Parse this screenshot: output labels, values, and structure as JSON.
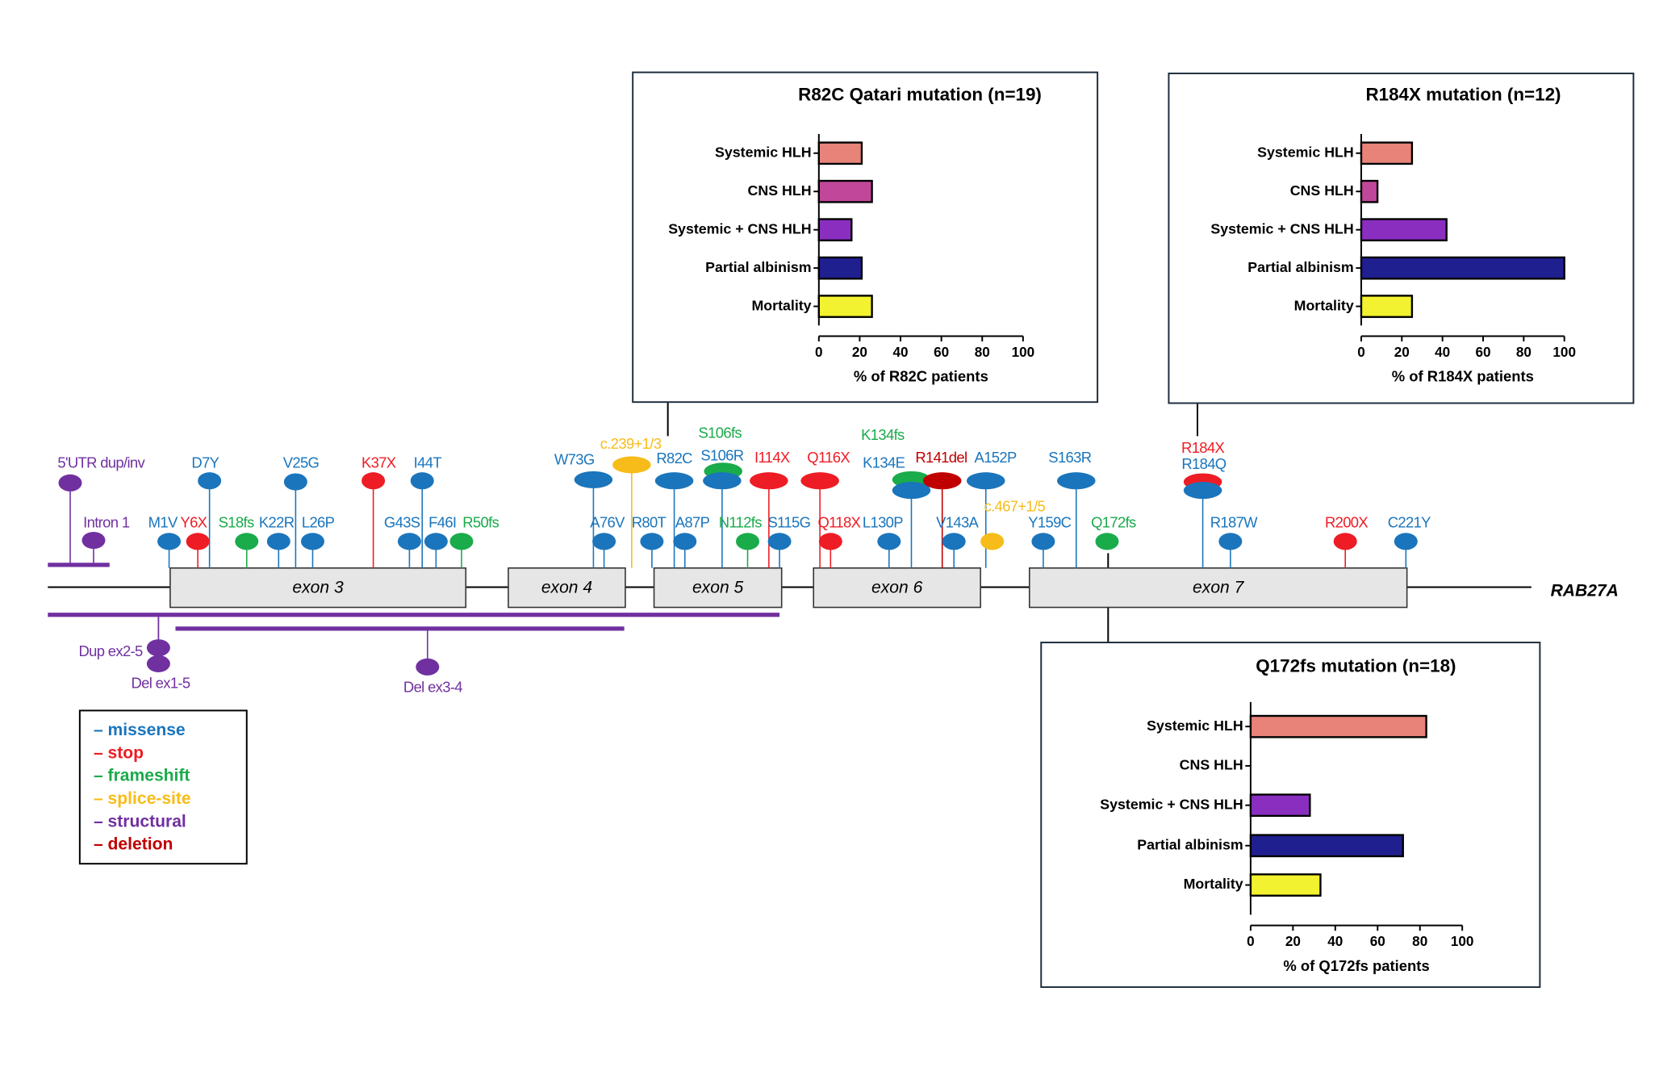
{
  "chart_data": [
    {
      "type": "barh",
      "title": "R82C Qatari mutation (n=19)",
      "categories": [
        "Systemic HLH",
        "CNS HLH",
        "Systemic + CNS HLH",
        "Partial albinism",
        "Mortality"
      ],
      "values": [
        21,
        26,
        16,
        21,
        26
      ],
      "colors": [
        "#e8837a",
        "#c0479a",
        "#8a2ec0",
        "#1f1f8f",
        "#f2f230"
      ],
      "xlim": [
        0,
        100
      ],
      "xticks": [
        0,
        20,
        40,
        60,
        80,
        100
      ],
      "xlabel": "% of R82C patients"
    },
    {
      "type": "barh",
      "title": "R184X mutation (n=12)",
      "categories": [
        "Systemic HLH",
        "CNS HLH",
        "Systemic + CNS HLH",
        "Partial albinism",
        "Mortality"
      ],
      "values": [
        25,
        8,
        42,
        100,
        25
      ],
      "colors": [
        "#e8837a",
        "#c0479a",
        "#8a2ec0",
        "#1f1f8f",
        "#f2f230"
      ],
      "xlim": [
        0,
        100
      ],
      "xticks": [
        0,
        20,
        40,
        60,
        80,
        100
      ],
      "xlabel": "% of R184X patients"
    },
    {
      "type": "barh",
      "title": "Q172fs mutation (n=18)",
      "categories": [
        "Systemic HLH",
        "CNS HLH",
        "Systemic + CNS HLH",
        "Partial albinism",
        "Mortality"
      ],
      "values": [
        83,
        0,
        28,
        72,
        33
      ],
      "colors": [
        "#e8837a",
        "#c0479a",
        "#8a2ec0",
        "#1f1f8f",
        "#f2f230"
      ],
      "xlim": [
        0,
        100
      ],
      "xticks": [
        0,
        20,
        40,
        60,
        80,
        100
      ],
      "xlabel": "% of Q172fs patients"
    }
  ],
  "gene": "RAB27A",
  "exons": [
    "exon 3",
    "exon 4",
    "exon 5",
    "exon 6",
    "exon 7"
  ],
  "mutations": [
    {
      "label": "5'UTR dup/inv",
      "color": "#7030a0"
    },
    {
      "label": "Intron 1",
      "color": "#7030a0"
    },
    {
      "label": "D7Y",
      "color": "#1a75bc"
    },
    {
      "label": "M1V",
      "color": "#1a75bc"
    },
    {
      "label": "Y6X",
      "color": "#ee1c24"
    },
    {
      "label": "S18fs",
      "color": "#1aab4b"
    },
    {
      "label": "K22R",
      "color": "#1a75bc"
    },
    {
      "label": "V25G",
      "color": "#1a75bc"
    },
    {
      "label": "L26P",
      "color": "#1a75bc"
    },
    {
      "label": "K37X",
      "color": "#ee1c24"
    },
    {
      "label": "I44T",
      "color": "#1a75bc"
    },
    {
      "label": "G43S",
      "color": "#1a75bc"
    },
    {
      "label": "F46I",
      "color": "#1a75bc"
    },
    {
      "label": "R50fs",
      "color": "#1aab4b"
    },
    {
      "label": "W73G",
      "color": "#1a75bc"
    },
    {
      "label": "c.239+1/3",
      "color": "#f7bc19"
    },
    {
      "label": "A76V",
      "color": "#1a75bc"
    },
    {
      "label": "R80T",
      "color": "#1a75bc"
    },
    {
      "label": "R82C",
      "color": "#1a75bc"
    },
    {
      "label": "S106fs",
      "color": "#1aab4b"
    },
    {
      "label": "S106R",
      "color": "#1a75bc"
    },
    {
      "label": "A87P",
      "color": "#1a75bc"
    },
    {
      "label": "N112fs",
      "color": "#1aab4b"
    },
    {
      "label": "I114X",
      "color": "#ee1c24"
    },
    {
      "label": "S115G",
      "color": "#1a75bc"
    },
    {
      "label": "Q116X",
      "color": "#ee1c24"
    },
    {
      "label": "Q118X",
      "color": "#ee1c24"
    },
    {
      "label": "K134fs",
      "color": "#1aab4b"
    },
    {
      "label": "K134E",
      "color": "#1a75bc"
    },
    {
      "label": "R141del",
      "color": "#c00000"
    },
    {
      "label": "A152P",
      "color": "#1a75bc"
    },
    {
      "label": "L130P",
      "color": "#1a75bc"
    },
    {
      "label": "V143A",
      "color": "#1a75bc"
    },
    {
      "label": "c.467+1/5",
      "color": "#f7bc19"
    },
    {
      "label": "S163R",
      "color": "#1a75bc"
    },
    {
      "label": "Y159C",
      "color": "#1a75bc"
    },
    {
      "label": "Q172fs",
      "color": "#1aab4b"
    },
    {
      "label": "R184X",
      "color": "#ee1c24"
    },
    {
      "label": "R184Q",
      "color": "#1a75bc"
    },
    {
      "label": "R187W",
      "color": "#1a75bc"
    },
    {
      "label": "R200X",
      "color": "#ee1c24"
    },
    {
      "label": "C221Y",
      "color": "#1a75bc"
    },
    {
      "label": "Dup ex2-5",
      "color": "#7030a0"
    },
    {
      "label": "Del ex1-5",
      "color": "#7030a0"
    },
    {
      "label": "Del ex3-4",
      "color": "#7030a0"
    }
  ],
  "legend": [
    {
      "label": "– missense",
      "color": "#1a75bc"
    },
    {
      "label": "– stop",
      "color": "#ee1c24"
    },
    {
      "label": "– frameshift",
      "color": "#1aab4b"
    },
    {
      "label": "– splice-site",
      "color": "#f7bc19"
    },
    {
      "label": "– structural",
      "color": "#7030a0"
    },
    {
      "label": "– deletion",
      "color": "#c00000"
    }
  ]
}
